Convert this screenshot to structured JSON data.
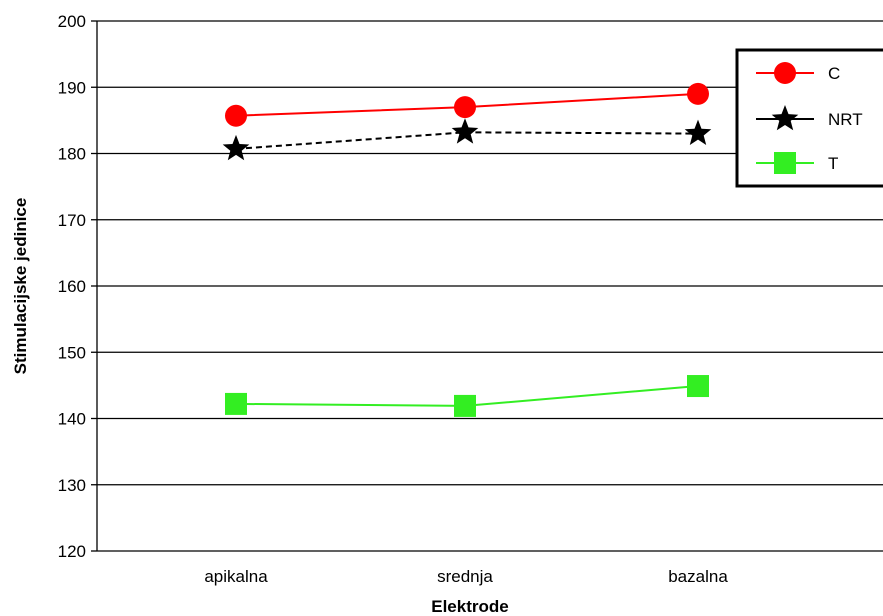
{
  "chart_data": {
    "type": "line",
    "xlabel": "Elektrode",
    "ylabel": "Stimulacijske jedinice",
    "categories": [
      "apikalna",
      "srednja",
      "bazalna"
    ],
    "ylim": [
      120,
      200
    ],
    "yticks": [
      120,
      130,
      140,
      150,
      160,
      170,
      180,
      190,
      200
    ],
    "grid": "horizontal",
    "legend_position": "top-right",
    "series": [
      {
        "name": "C",
        "values": [
          185.7,
          187.0,
          189.0
        ],
        "color": "#ff0000",
        "marker": "circle",
        "line_style": "solid"
      },
      {
        "name": "NRT",
        "values": [
          180.7,
          183.2,
          183.0
        ],
        "color": "#000000",
        "marker": "star",
        "line_style": "dashed"
      },
      {
        "name": "T",
        "values": [
          142.2,
          141.9,
          144.9
        ],
        "color": "#33ee22",
        "marker": "square",
        "line_style": "solid"
      }
    ]
  }
}
